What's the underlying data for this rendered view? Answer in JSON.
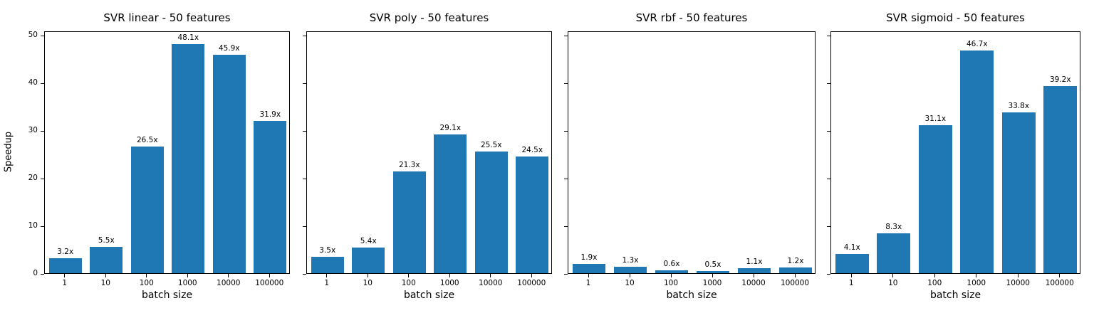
{
  "figure": {
    "background_color": "#ffffff",
    "bar_color": "#1f77b4",
    "text_color": "#000000",
    "xlabel": "batch size",
    "ylabel": "Speedup",
    "y_ticks": [
      0,
      10,
      20,
      30,
      40,
      50
    ],
    "ylim": [
      0,
      50.9
    ],
    "grid": false,
    "legend": "none"
  },
  "chart_data": [
    {
      "type": "bar",
      "title": "SVR linear - 50 features",
      "categories": [
        "1",
        "10",
        "100",
        "1000",
        "10000",
        "100000"
      ],
      "values": [
        3.2,
        5.5,
        26.5,
        48.1,
        45.9,
        31.9
      ],
      "bar_labels": [
        "3.2x",
        "5.5x",
        "26.5x",
        "48.1x",
        "45.9x",
        "31.9x"
      ],
      "xlabel": "batch size",
      "ylabel": "Speedup",
      "ylim": [
        0,
        50.9
      ],
      "show_y_tick_labels": true
    },
    {
      "type": "bar",
      "title": "SVR poly - 50 features",
      "categories": [
        "1",
        "10",
        "100",
        "1000",
        "10000",
        "100000"
      ],
      "values": [
        3.5,
        5.4,
        21.3,
        29.1,
        25.5,
        24.5
      ],
      "bar_labels": [
        "3.5x",
        "5.4x",
        "21.3x",
        "29.1x",
        "25.5x",
        "24.5x"
      ],
      "xlabel": "batch size",
      "ylabel": "",
      "ylim": [
        0,
        50.9
      ],
      "show_y_tick_labels": false
    },
    {
      "type": "bar",
      "title": "SVR rbf - 50 features",
      "categories": [
        "1",
        "10",
        "100",
        "1000",
        "10000",
        "100000"
      ],
      "values": [
        1.9,
        1.3,
        0.6,
        0.5,
        1.1,
        1.2
      ],
      "bar_labels": [
        "1.9x",
        "1.3x",
        "0.6x",
        "0.5x",
        "1.1x",
        "1.2x"
      ],
      "xlabel": "batch size",
      "ylabel": "",
      "ylim": [
        0,
        50.9
      ],
      "show_y_tick_labels": false
    },
    {
      "type": "bar",
      "title": "SVR sigmoid - 50 features",
      "categories": [
        "1",
        "10",
        "100",
        "1000",
        "10000",
        "100000"
      ],
      "values": [
        4.1,
        8.3,
        31.1,
        46.7,
        33.8,
        39.2
      ],
      "bar_labels": [
        "4.1x",
        "8.3x",
        "31.1x",
        "46.7x",
        "33.8x",
        "39.2x"
      ],
      "xlabel": "batch size",
      "ylabel": "",
      "ylim": [
        0,
        50.9
      ],
      "show_y_tick_labels": false
    }
  ]
}
